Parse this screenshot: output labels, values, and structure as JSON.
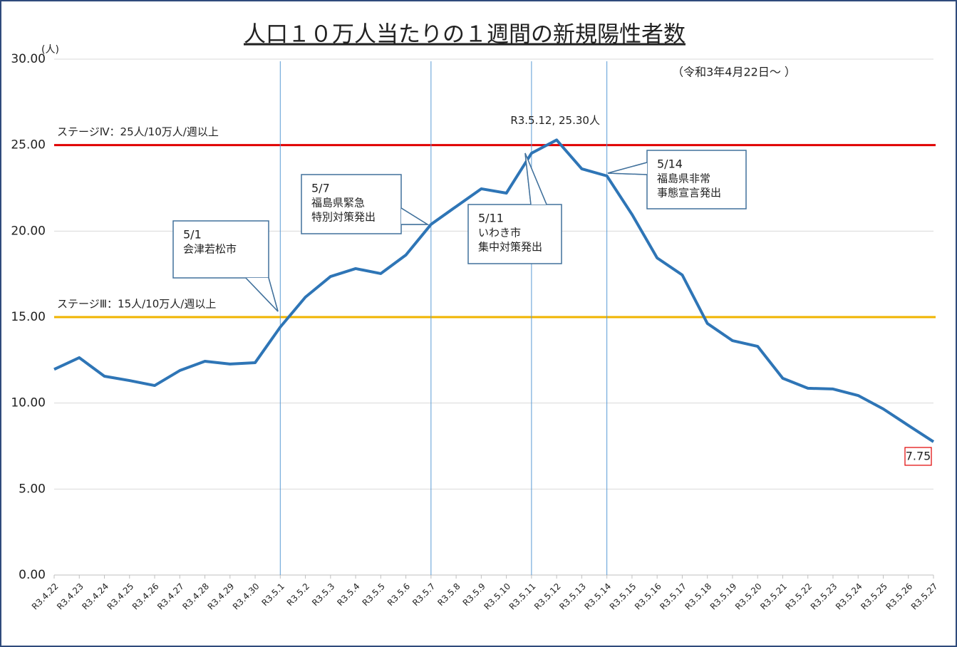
{
  "chart_data": {
    "type": "line",
    "title": "人口１０万人当たりの１週間の新規陽性者数",
    "subtitle": "（令和3年4月22日～ ）",
    "y_unit": "(人)",
    "categories": [
      "R3.4.22",
      "R3.4.23",
      "R3.4.24",
      "R3.4.25",
      "R3.4.26",
      "R3.4.27",
      "R3.4.28",
      "R3.4.29",
      "R3.4.30",
      "R3.5.1",
      "R3.5.2",
      "R3.5.3",
      "R3.5.4",
      "R3.5.5",
      "R3.5.6",
      "R3.5.7",
      "R3.5.8",
      "R3.5.9",
      "R3.5.10",
      "R3.5.11",
      "R3.5.12",
      "R3.5.13",
      "R3.5.14",
      "R3.5.15",
      "R3.5.16",
      "R3.5.17",
      "R3.5.18",
      "R3.5.19",
      "R3.5.20",
      "R3.5.21",
      "R3.5.22",
      "R3.5.23",
      "R3.5.24",
      "R3.5.25",
      "R3.5.26",
      "R3.5.27"
    ],
    "values": [
      11.96,
      12.64,
      11.56,
      11.31,
      11.02,
      11.89,
      12.43,
      12.27,
      12.35,
      14.42,
      16.16,
      17.36,
      17.82,
      17.53,
      18.61,
      20.39,
      21.43,
      22.46,
      22.21,
      24.53,
      25.3,
      23.62,
      23.21,
      20.97,
      18.44,
      17.45,
      14.63,
      13.63,
      13.3,
      11.44,
      10.86,
      10.82,
      10.44,
      9.66,
      8.7,
      7.75
    ],
    "value_labels": [
      null,
      null,
      null,
      null,
      null,
      null,
      null,
      null,
      null,
      null,
      null,
      null,
      null,
      null,
      null,
      null,
      null,
      null,
      null,
      null,
      "R3.5.12, 25.30人",
      null,
      null,
      null,
      null,
      null,
      null,
      null,
      null,
      null,
      null,
      null,
      null,
      null,
      null,
      "7.75"
    ],
    "color": "#2e75b6",
    "ylim": [
      0,
      30
    ],
    "yticks": [
      {
        "value": 0,
        "label": "0.00"
      },
      {
        "value": 5,
        "label": "5.00"
      },
      {
        "value": 10,
        "label": "10.00"
      },
      {
        "value": 15,
        "label": "15.00"
      },
      {
        "value": 20,
        "label": "20.00"
      },
      {
        "value": 25,
        "label": "25.00"
      },
      {
        "value": 30,
        "label": "30.00"
      }
    ],
    "grid": true,
    "reference_lines": [
      {
        "value": 25,
        "label": "ステージⅣ：25人/10万人/週以上",
        "color": "#e00000"
      },
      {
        "value": 15,
        "label": "ステージⅢ：15人/10万人/週以上",
        "color": "#f0b400"
      }
    ],
    "annotations": [
      {
        "x": "R3.5.1",
        "text": [
          "5/1",
          "会津若松市"
        ]
      },
      {
        "x": "R3.5.7",
        "text": [
          "5/7",
          "福島県緊急",
          "特別対策発出"
        ]
      },
      {
        "x": "R3.5.11",
        "text": [
          "5/11",
          "いわき市",
          "集中対策発出"
        ]
      },
      {
        "x": "R3.5.14",
        "text": [
          "5/14",
          "福島県非常",
          "事態宣言発出"
        ]
      }
    ]
  }
}
